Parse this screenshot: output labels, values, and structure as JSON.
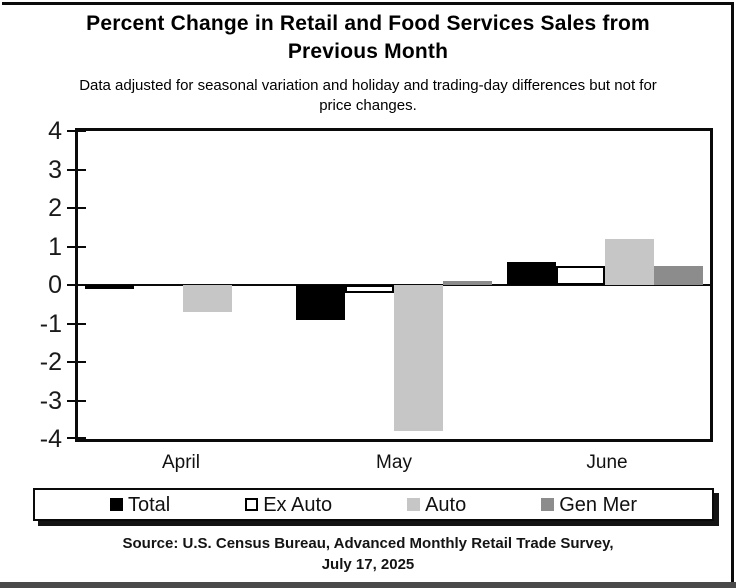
{
  "title": {
    "lines": [
      "Percent Change in Retail and Food Services Sales from",
      "Previous Month"
    ]
  },
  "subtitle": {
    "lines": [
      "Data adjusted for seasonal variation and holiday and trading-day differences but not for",
      "price changes."
    ]
  },
  "source": {
    "lines": [
      "Source: U.S. Census Bureau, Advanced Monthly Retail Trade Survey,",
      "July 17, 2025"
    ]
  },
  "chart_data": {
    "type": "bar",
    "categories": [
      "April",
      "May",
      "June"
    ],
    "series": [
      {
        "name": "Total",
        "color": "#000000",
        "values": [
          -0.1,
          -0.9,
          0.6
        ]
      },
      {
        "name": "Ex Auto",
        "color": "#ffffff",
        "border_color": "#000000",
        "values": [
          0.0,
          -0.2,
          0.5
        ]
      },
      {
        "name": "Auto",
        "color": "#c6c6c6",
        "values": [
          -0.7,
          -3.8,
          1.2
        ]
      },
      {
        "name": "Gen Mer",
        "color": "#8c8c8c",
        "values": [
          0.0,
          0.1,
          0.5
        ]
      }
    ],
    "ylim": [
      -4,
      4
    ],
    "y_ticks": [
      4,
      3,
      2,
      1,
      0,
      -1,
      -2,
      -3,
      -4
    ],
    "grid": false,
    "legend_position": "bottom",
    "xlabel": "",
    "ylabel": ""
  }
}
